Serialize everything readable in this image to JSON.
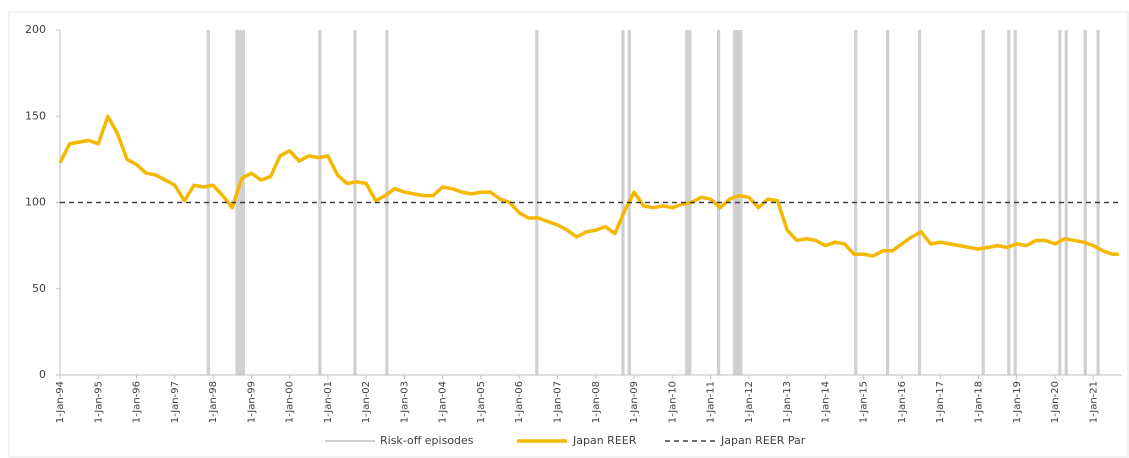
{
  "chart_data": {
    "type": "line",
    "x": [
      "1994-01",
      "1994-04",
      "1994-07",
      "1994-10",
      "1995-01",
      "1995-04",
      "1995-07",
      "1995-10",
      "1996-01",
      "1996-04",
      "1996-07",
      "1996-10",
      "1997-01",
      "1997-04",
      "1997-07",
      "1997-10",
      "1998-01",
      "1998-04",
      "1998-07",
      "1998-10",
      "1999-01",
      "1999-04",
      "1999-07",
      "1999-10",
      "2000-01",
      "2000-04",
      "2000-07",
      "2000-10",
      "2001-01",
      "2001-04",
      "2001-07",
      "2001-10",
      "2002-01",
      "2002-04",
      "2002-07",
      "2002-10",
      "2003-01",
      "2003-04",
      "2003-07",
      "2003-10",
      "2004-01",
      "2004-04",
      "2004-07",
      "2004-10",
      "2005-01",
      "2005-04",
      "2005-07",
      "2005-10",
      "2006-01",
      "2006-04",
      "2006-07",
      "2006-10",
      "2007-01",
      "2007-04",
      "2007-07",
      "2007-10",
      "2008-01",
      "2008-04",
      "2008-07",
      "2008-10",
      "2009-01",
      "2009-04",
      "2009-07",
      "2009-10",
      "2010-01",
      "2010-04",
      "2010-07",
      "2010-10",
      "2011-01",
      "2011-04",
      "2011-07",
      "2011-10",
      "2012-01",
      "2012-04",
      "2012-07",
      "2012-10",
      "2013-01",
      "2013-04",
      "2013-07",
      "2013-10",
      "2014-01",
      "2014-04",
      "2014-07",
      "2014-10",
      "2015-01",
      "2015-04",
      "2015-07",
      "2015-10",
      "2016-01",
      "2016-04",
      "2016-07",
      "2016-10",
      "2017-01",
      "2017-04",
      "2017-07",
      "2017-10",
      "2018-01",
      "2018-04",
      "2018-07",
      "2018-10",
      "2019-01",
      "2019-04",
      "2019-07",
      "2019-10",
      "2020-01",
      "2020-04",
      "2020-07",
      "2020-10",
      "2021-01",
      "2021-04",
      "2021-07",
      "2021-09"
    ],
    "series": [
      {
        "name": "Japan REER",
        "color": "#f5b800",
        "values": [
          123,
          134,
          135,
          136,
          134,
          150,
          140,
          125,
          122,
          117,
          116,
          113,
          110,
          101,
          110,
          109,
          110,
          104,
          97,
          114,
          117,
          113,
          115,
          127,
          130,
          124,
          127,
          126,
          127,
          116,
          111,
          112,
          111,
          101,
          104,
          108,
          106,
          105,
          104,
          104,
          109,
          108,
          106,
          105,
          106,
          106,
          102,
          100,
          94,
          91,
          91,
          89,
          87,
          84,
          80,
          83,
          84,
          86,
          82,
          95,
          106,
          98,
          97,
          98,
          97,
          99,
          100,
          103,
          102,
          97,
          102,
          104,
          103,
          97,
          102,
          101,
          84,
          78,
          79,
          78,
          75,
          77,
          76,
          70,
          70,
          69,
          72,
          72,
          76,
          80,
          83,
          76,
          77,
          76,
          75,
          74,
          73,
          74,
          75,
          74,
          76,
          75,
          78,
          78,
          76,
          79,
          78,
          77,
          75,
          72,
          70,
          70
        ]
      },
      {
        "name": "Japan REER Par",
        "color": "#404040",
        "dashed": true,
        "value": 100
      }
    ],
    "bands": {
      "name": "Risk-off episodes",
      "color": "#d0d0d0",
      "periods": [
        [
          "1997-11",
          "1997-11"
        ],
        [
          "1998-08",
          "1998-10"
        ],
        [
          "2000-10",
          "2000-10"
        ],
        [
          "2001-09",
          "2001-09"
        ],
        [
          "2002-07",
          "2002-07"
        ],
        [
          "2006-06",
          "2006-06"
        ],
        [
          "2008-09",
          "2008-09"
        ],
        [
          "2008-11",
          "2008-11"
        ],
        [
          "2010-05",
          "2010-06"
        ],
        [
          "2011-03",
          "2011-03"
        ],
        [
          "2011-08",
          "2011-10"
        ],
        [
          "2014-10",
          "2014-10"
        ],
        [
          "2015-08",
          "2015-08"
        ],
        [
          "2016-06",
          "2016-06"
        ],
        [
          "2018-02",
          "2018-02"
        ],
        [
          "2018-10",
          "2018-10"
        ],
        [
          "2018-12",
          "2018-12"
        ],
        [
          "2020-02",
          "2020-02"
        ],
        [
          "2020-04",
          "2020-04"
        ],
        [
          "2020-10",
          "2020-10"
        ],
        [
          "2021-02",
          "2021-02"
        ]
      ]
    },
    "xlim": [
      "1994-01",
      "2021-10"
    ],
    "xticks": [
      {
        "value": "1994-01",
        "label": "1-Jan-94"
      },
      {
        "value": "1995-01",
        "label": "1-Jan-95"
      },
      {
        "value": "1996-01",
        "label": "1-Jan-96"
      },
      {
        "value": "1997-01",
        "label": "1-Jan-97"
      },
      {
        "value": "1998-01",
        "label": "1-Jan-98"
      },
      {
        "value": "1999-01",
        "label": "1-Jan-99"
      },
      {
        "value": "2000-01",
        "label": "1-Jan-00"
      },
      {
        "value": "2001-01",
        "label": "1-Jan-01"
      },
      {
        "value": "2002-01",
        "label": "1-Jan-02"
      },
      {
        "value": "2003-01",
        "label": "1-Jan-03"
      },
      {
        "value": "2004-01",
        "label": "1-Jan-04"
      },
      {
        "value": "2005-01",
        "label": "1-Jan-05"
      },
      {
        "value": "2006-01",
        "label": "1-Jan-06"
      },
      {
        "value": "2007-01",
        "label": "1-Jan-07"
      },
      {
        "value": "2008-01",
        "label": "1-Jan-08"
      },
      {
        "value": "2009-01",
        "label": "1-Jan-09"
      },
      {
        "value": "2010-01",
        "label": "1-Jan-10"
      },
      {
        "value": "2011-01",
        "label": "1-Jan-11"
      },
      {
        "value": "2012-01",
        "label": "1-Jan-12"
      },
      {
        "value": "2013-01",
        "label": "1-Jan-13"
      },
      {
        "value": "2014-01",
        "label": "1-Jan-14"
      },
      {
        "value": "2015-01",
        "label": "1-Jan-15"
      },
      {
        "value": "2016-01",
        "label": "1-Jan-16"
      },
      {
        "value": "2017-01",
        "label": "1-Jan-17"
      },
      {
        "value": "2018-01",
        "label": "1-Jan-18"
      },
      {
        "value": "2019-01",
        "label": "1-Jan-19"
      },
      {
        "value": "2020-01",
        "label": "1-Jan-20"
      },
      {
        "value": "2021-01",
        "label": "1-Jan-21"
      }
    ],
    "ylim": [
      0,
      200
    ],
    "yticks": [
      0,
      50,
      100,
      150,
      200
    ]
  }
}
